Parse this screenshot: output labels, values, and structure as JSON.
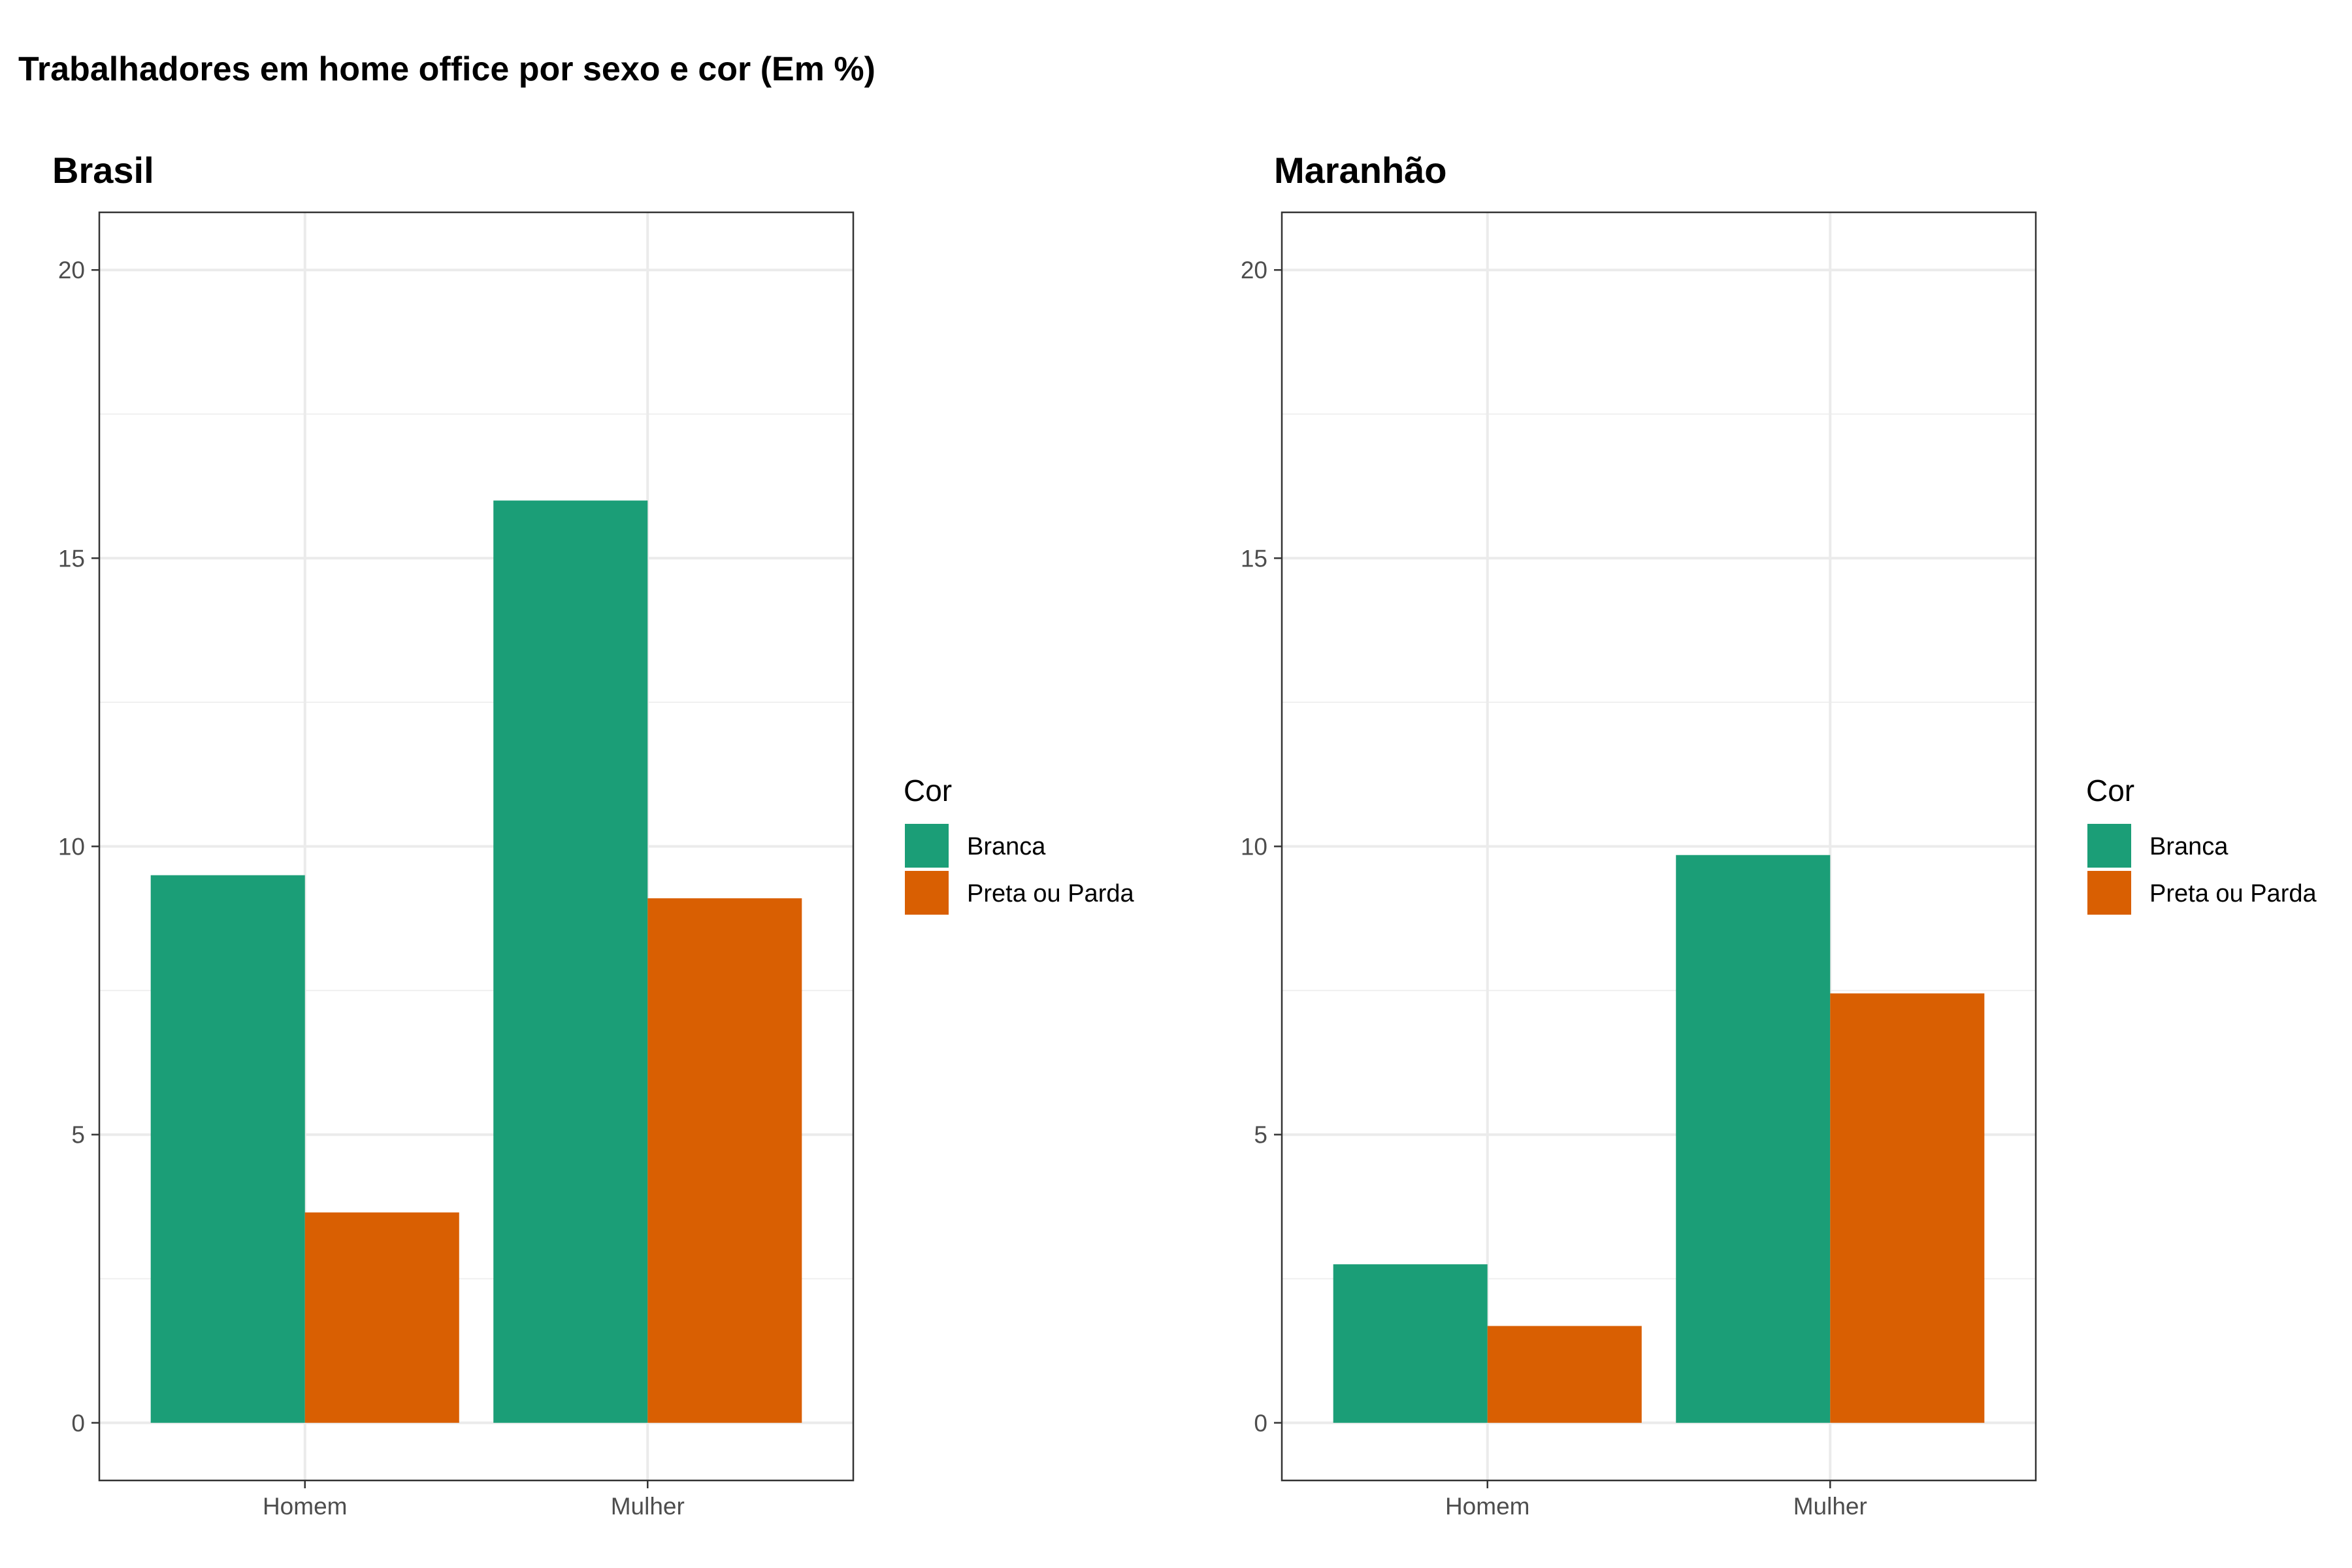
{
  "title": "Trabalhadores em home office por sexo e cor (Em %)",
  "colors": {
    "Branca": "#1b9e77",
    "Preta ou Parda": "#d95f02"
  },
  "chart_data": [
    {
      "type": "bar",
      "title": "Brasil",
      "categories": [
        "Homem",
        "Mulher"
      ],
      "series": [
        {
          "name": "Branca",
          "values": [
            9.5,
            16.0
          ]
        },
        {
          "name": "Preta ou Parda",
          "values": [
            3.65,
            9.1
          ]
        }
      ],
      "ylim": [
        -1,
        21
      ],
      "yticks": [
        0,
        5,
        10,
        15,
        20
      ],
      "xlabel": "",
      "ylabel": "",
      "grid": true,
      "legend": {
        "title": "Cor",
        "placement": "right"
      }
    },
    {
      "type": "bar",
      "title": "Maranhão",
      "categories": [
        "Homem",
        "Mulher"
      ],
      "series": [
        {
          "name": "Branca",
          "values": [
            2.75,
            9.85
          ]
        },
        {
          "name": "Preta ou Parda",
          "values": [
            1.68,
            7.45
          ]
        }
      ],
      "ylim": [
        -1,
        21
      ],
      "yticks": [
        0,
        5,
        10,
        15,
        20
      ],
      "xlabel": "",
      "ylabel": "",
      "grid": true,
      "legend": {
        "title": "Cor",
        "placement": "right"
      }
    }
  ]
}
